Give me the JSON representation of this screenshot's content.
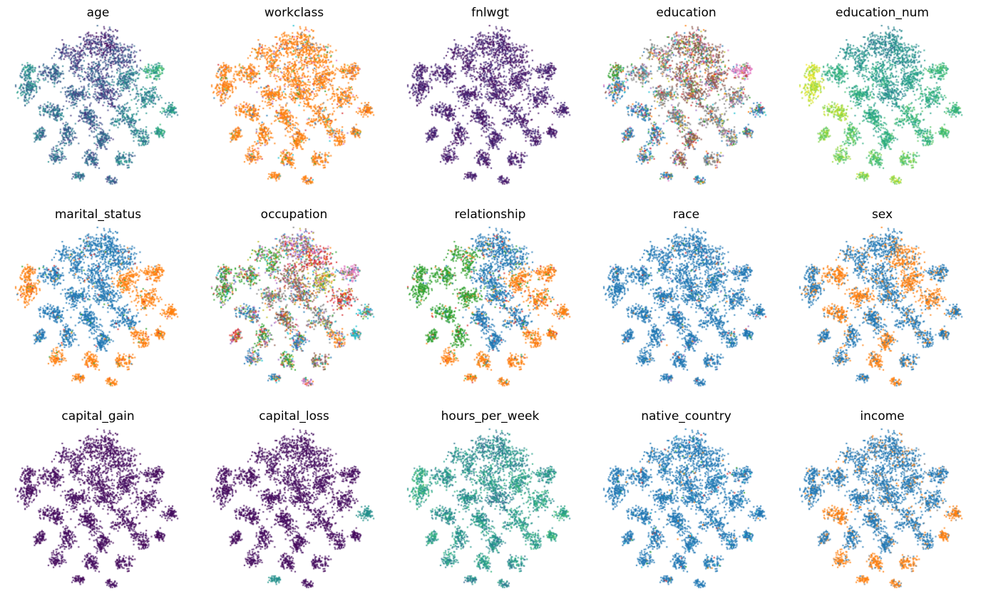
{
  "figure": {
    "background": "#ffffff",
    "grid": {
      "rows": 3,
      "cols": 5
    },
    "axes_visible": false
  },
  "chart_data": {
    "type": "scatter",
    "description": "Grid of 15 identical 2D embedding scatter plots (t-SNE style point cloud of many small clusters), each panel colored by a different feature of a census/adult dataset. No axes, ticks, or legends are shown; only panel titles.",
    "titles": [
      "age",
      "workclass",
      "fnlwgt",
      "education",
      "education_num",
      "marital_status",
      "occupation",
      "relationship",
      "race",
      "sex",
      "capital_gain",
      "capital_loss",
      "hours_per_week",
      "native_country",
      "income"
    ],
    "palettes": {
      "viridis": [
        "#440154",
        "#482878",
        "#3e4989",
        "#31688e",
        "#26828e",
        "#1f9e89",
        "#35b779",
        "#6ece58",
        "#b5de2b",
        "#fde725"
      ],
      "tab10": [
        "#1f77b4",
        "#ff7f0e",
        "#2ca02c",
        "#d62728",
        "#9467bd",
        "#8c564b",
        "#e377c2",
        "#7f7f7f",
        "#bcbd22",
        "#17becf"
      ]
    },
    "marker_size": 2,
    "marker_alpha": 0.9,
    "embedding_clusters": [
      [
        0.48,
        0.1,
        0.1,
        260
      ],
      [
        0.63,
        0.19,
        0.09,
        220
      ],
      [
        0.34,
        0.21,
        0.08,
        180
      ],
      [
        0.5,
        0.3,
        0.09,
        220
      ],
      [
        0.21,
        0.31,
        0.07,
        150
      ],
      [
        0.7,
        0.33,
        0.08,
        180
      ],
      [
        0.84,
        0.27,
        0.06,
        120
      ],
      [
        0.09,
        0.42,
        0.07,
        150
      ],
      [
        0.36,
        0.42,
        0.07,
        160
      ],
      [
        0.55,
        0.44,
        0.07,
        160
      ],
      [
        0.78,
        0.45,
        0.07,
        150
      ],
      [
        0.91,
        0.51,
        0.05,
        90
      ],
      [
        0.2,
        0.55,
        0.07,
        150
      ],
      [
        0.45,
        0.57,
        0.08,
        180
      ],
      [
        0.65,
        0.58,
        0.07,
        150
      ],
      [
        0.32,
        0.68,
        0.06,
        120
      ],
      [
        0.52,
        0.7,
        0.06,
        130
      ],
      [
        0.75,
        0.68,
        0.06,
        110
      ],
      [
        0.88,
        0.66,
        0.04,
        70
      ],
      [
        0.25,
        0.8,
        0.05,
        90
      ],
      [
        0.45,
        0.83,
        0.05,
        100
      ],
      [
        0.65,
        0.82,
        0.05,
        90
      ],
      [
        0.38,
        0.93,
        0.035,
        50
      ],
      [
        0.58,
        0.95,
        0.03,
        45
      ],
      [
        0.14,
        0.67,
        0.045,
        80
      ],
      [
        0.07,
        0.28,
        0.05,
        90
      ]
    ],
    "panels": [
      {
        "title": "age",
        "mode": "continuous",
        "palette": "viridis",
        "jitter": 0.16,
        "values": [
          0.15,
          0.22,
          0.18,
          0.25,
          0.32,
          0.38,
          0.6,
          0.42,
          0.3,
          0.22,
          0.45,
          0.5,
          0.35,
          0.28,
          0.42,
          0.32,
          0.3,
          0.45,
          0.55,
          0.35,
          0.3,
          0.42,
          0.35,
          0.3,
          0.38,
          0.45
        ]
      },
      {
        "title": "workclass",
        "mode": "categorical",
        "palette": "tab10",
        "noise": 0.16,
        "noise_palette": [
          0,
          2,
          3,
          4,
          5,
          6,
          7,
          8,
          9
        ],
        "values": [
          1,
          1,
          1,
          1,
          1,
          1,
          1,
          1,
          1,
          1,
          1,
          1,
          1,
          1,
          1,
          1,
          1,
          1,
          1,
          1,
          1,
          1,
          1,
          1,
          1,
          1
        ]
      },
      {
        "title": "fnlwgt",
        "mode": "continuous",
        "palette": "viridis",
        "jitter": 0.08,
        "values": [
          0.08,
          0.08,
          0.08,
          0.08,
          0.08,
          0.08,
          0.08,
          0.08,
          0.08,
          0.08,
          0.08,
          0.08,
          0.08,
          0.08,
          0.08,
          0.08,
          0.08,
          0.08,
          0.08,
          0.08,
          0.08,
          0.08,
          0.08,
          0.08,
          0.08,
          0.08
        ]
      },
      {
        "title": "education",
        "mode": "categorical",
        "palette": "tab10",
        "noise": 0.5,
        "noise_palette": [
          0,
          1,
          2,
          3,
          4,
          5,
          6,
          7,
          8,
          9
        ],
        "values": [
          5,
          5,
          7,
          5,
          7,
          5,
          6,
          0,
          7,
          5,
          7,
          0,
          0,
          7,
          7,
          0,
          5,
          7,
          0,
          0,
          5,
          7,
          0,
          0,
          0,
          2
        ]
      },
      {
        "title": "education_num",
        "mode": "continuous",
        "palette": "viridis",
        "jitter": 0.1,
        "values": [
          0.45,
          0.5,
          0.5,
          0.55,
          0.62,
          0.55,
          0.65,
          0.9,
          0.6,
          0.5,
          0.6,
          0.65,
          0.85,
          0.6,
          0.65,
          0.72,
          0.62,
          0.65,
          0.7,
          0.78,
          0.72,
          0.75,
          0.82,
          0.85,
          0.8,
          0.9
        ]
      },
      {
        "title": "marital_status",
        "mode": "categorical",
        "palette": "tab10",
        "noise": 0.08,
        "noise_palette": [
          0,
          1,
          2,
          3
        ],
        "values": [
          0,
          0,
          0,
          0,
          0,
          1,
          1,
          1,
          0,
          0,
          1,
          1,
          0,
          0,
          0,
          0,
          0,
          1,
          1,
          1,
          1,
          1,
          1,
          1,
          0,
          1
        ]
      },
      {
        "title": "occupation",
        "mode": "categorical",
        "palette": "tab10",
        "noise": 0.58,
        "noise_palette": [
          0,
          1,
          2,
          3,
          4,
          5,
          6,
          7,
          8,
          9
        ],
        "values": [
          4,
          3,
          2,
          5,
          2,
          8,
          6,
          2,
          7,
          5,
          3,
          9,
          0,
          5,
          7,
          2,
          0,
          1,
          9,
          0,
          2,
          5,
          0,
          6,
          3,
          2
        ]
      },
      {
        "title": "relationship",
        "mode": "categorical",
        "palette": "tab10",
        "noise": 0.16,
        "noise_palette": [
          0,
          1,
          2,
          3
        ],
        "values": [
          0,
          0,
          2,
          0,
          2,
          1,
          1,
          2,
          2,
          0,
          1,
          1,
          2,
          0,
          0,
          2,
          0,
          1,
          1,
          1,
          1,
          1,
          1,
          1,
          2,
          2
        ]
      },
      {
        "title": "race",
        "mode": "categorical",
        "palette": "tab10",
        "noise": 0.05,
        "noise_palette": [
          1,
          2,
          3,
          4
        ],
        "values": [
          0,
          0,
          0,
          0,
          0,
          0,
          0,
          0,
          0,
          0,
          0,
          0,
          0,
          0,
          0,
          0,
          0,
          0,
          0,
          0,
          0,
          0,
          0,
          0,
          0,
          0
        ]
      },
      {
        "title": "sex",
        "mode": "categorical",
        "palette": "tab10",
        "noise": 0.28,
        "noise_palette": [
          0,
          1
        ],
        "values": [
          0,
          1,
          0,
          0,
          1,
          1,
          0,
          0,
          1,
          0,
          1,
          0,
          1,
          0,
          0,
          0,
          1,
          0,
          0,
          0,
          1,
          0,
          0,
          1,
          0,
          0
        ]
      },
      {
        "title": "capital_gain",
        "mode": "continuous",
        "palette": "viridis",
        "jitter": 0.03,
        "values": [
          0.03,
          0.03,
          0.03,
          0.03,
          0.03,
          0.03,
          0.03,
          0.03,
          0.03,
          0.03,
          0.03,
          0.03,
          0.03,
          0.03,
          0.03,
          0.03,
          0.03,
          0.03,
          0.03,
          0.03,
          0.03,
          0.03,
          0.03,
          0.03,
          0.03,
          0.03
        ]
      },
      {
        "title": "capital_loss",
        "mode": "continuous",
        "palette": "viridis",
        "jitter": 0.03,
        "values": [
          0.03,
          0.03,
          0.03,
          0.03,
          0.03,
          0.03,
          0.03,
          0.03,
          0.03,
          0.03,
          0.03,
          0.5,
          0.03,
          0.03,
          0.03,
          0.03,
          0.03,
          0.03,
          0.03,
          0.03,
          0.03,
          0.03,
          0.5,
          0.03,
          0.03,
          0.03
        ]
      },
      {
        "title": "hours_per_week",
        "mode": "continuous",
        "palette": "viridis",
        "jitter": 0.14,
        "values": [
          0.45,
          0.5,
          0.48,
          0.52,
          0.5,
          0.55,
          0.5,
          0.6,
          0.5,
          0.45,
          0.55,
          0.6,
          0.5,
          0.52,
          0.55,
          0.5,
          0.48,
          0.55,
          0.6,
          0.52,
          0.55,
          0.5,
          0.45,
          0.5,
          0.55,
          0.6
        ]
      },
      {
        "title": "native_country",
        "mode": "categorical",
        "palette": "tab10",
        "noise": 0.05,
        "noise_palette": [
          1,
          2,
          3,
          9
        ],
        "values": [
          0,
          0,
          0,
          0,
          0,
          0,
          0,
          0,
          0,
          0,
          0,
          0,
          0,
          0,
          0,
          0,
          0,
          0,
          0,
          0,
          0,
          0,
          0,
          0,
          0,
          0
        ]
      },
      {
        "title": "income",
        "mode": "categorical",
        "palette": "tab10",
        "noise": 0.22,
        "noise_palette": [
          0,
          1,
          7
        ],
        "values": [
          0,
          0,
          0,
          0,
          0,
          0,
          0,
          0,
          0,
          0,
          0,
          1,
          1,
          0,
          0,
          0,
          0,
          0,
          1,
          1,
          1,
          1,
          1,
          1,
          0,
          0
        ]
      }
    ]
  }
}
